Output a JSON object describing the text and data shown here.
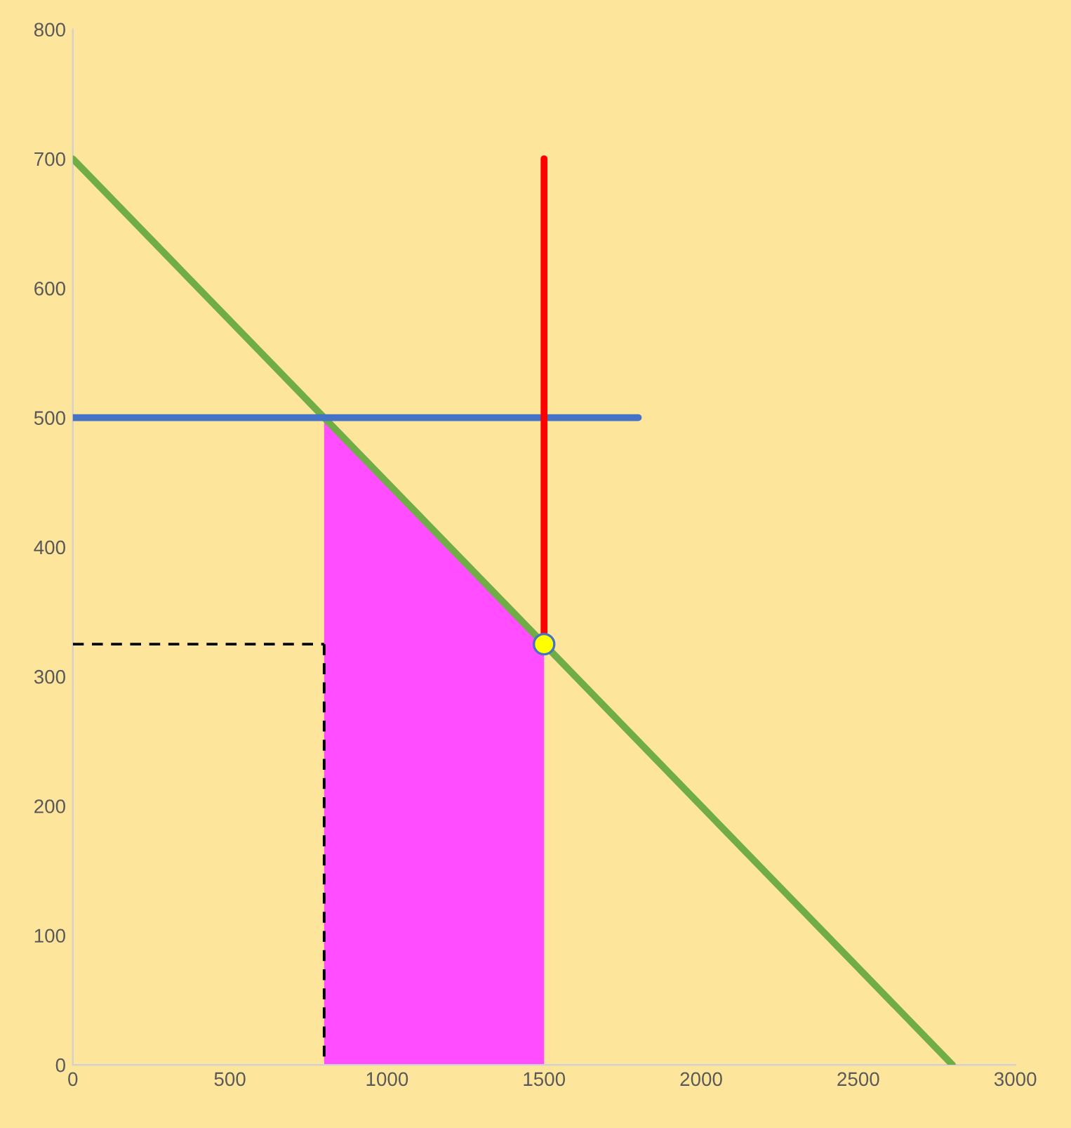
{
  "chart_data": {
    "type": "line",
    "xlim": [
      0,
      3000
    ],
    "xticks": [
      0,
      500,
      1000,
      1500,
      2000,
      2500,
      3000
    ],
    "ylim": [
      0,
      800
    ],
    "yticks": [
      0,
      100,
      200,
      300,
      400,
      500,
      600,
      700,
      800
    ],
    "grid": false,
    "series": [
      {
        "type": "area",
        "color": "#ff4dff",
        "x": [
          800,
          1500
        ],
        "values": [
          500,
          325
        ]
      },
      {
        "color": "#000000",
        "line_style": "dashed",
        "x": [
          0,
          800
        ],
        "values": [
          325,
          325
        ]
      },
      {
        "color": "#000000",
        "line_style": "dashed",
        "x": [
          800,
          800
        ],
        "values": [
          325,
          0
        ]
      },
      {
        "color": "#70ad47",
        "x": [
          0,
          2800
        ],
        "values": [
          700,
          0
        ]
      },
      {
        "color": "#4472c4",
        "x": [
          0,
          1800
        ],
        "values": [
          500,
          500
        ]
      },
      {
        "color": "#ff0000",
        "x": [
          1500,
          1500
        ],
        "values": [
          325,
          700
        ]
      },
      {
        "type": "scatter",
        "color": "#ffff00",
        "marker": "circle",
        "x": [
          1500
        ],
        "values": [
          325
        ]
      }
    ]
  }
}
